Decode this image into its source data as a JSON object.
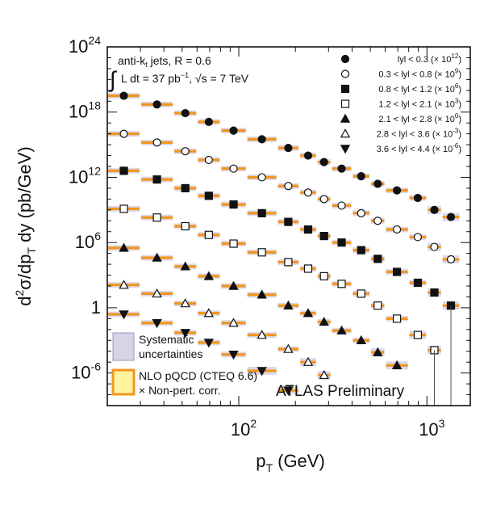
{
  "chart_data": {
    "type": "scatter",
    "log_x": true,
    "log_y": true,
    "xlim": [
      20,
      1700
    ],
    "ylim_log10": [
      -9,
      24
    ],
    "x_ticks": [
      {
        "v": 100,
        "b": "10",
        "e": "2"
      },
      {
        "v": 1000,
        "b": "10",
        "e": "3"
      }
    ],
    "y_ticks": [
      {
        "v": 24,
        "b": "10",
        "e": "24"
      },
      {
        "v": 18,
        "b": "10",
        "e": "18"
      },
      {
        "v": 12,
        "b": "10",
        "e": "12"
      },
      {
        "v": 6,
        "b": "10",
        "e": "6"
      },
      {
        "v": 0,
        "b": "1",
        "e": ""
      },
      {
        "v": -6,
        "b": "10",
        "e": "-6"
      }
    ],
    "xlabel": {
      "p": "p",
      "sub": "T",
      "rest": " (GeV)"
    },
    "ylabel": {
      "d1": "d",
      "s1": "2",
      "mid": "σ/dp",
      "sub": "T",
      "rest": " dy (pb/GeV)"
    },
    "annotation": {
      "line1": "anti-k",
      "line1_sub": "t",
      "line1_rest": " jets,   R = 0.6",
      "integral": "∫",
      "line2_a": "L",
      "line2_b": " dt = 37 pb",
      "line2_sup": "−1",
      "line2_c": ",   √s = 7 TeV"
    },
    "experiment_label": "ATLAS Preliminary",
    "band_legend": {
      "syst_line1": "Systematic",
      "syst_line2": "uncertainties",
      "nlo_line1": "NLO pQCD (CTEQ 6.6)",
      "nlo_line2": "× Non-pert. corr."
    },
    "colors": {
      "nlo_orange": "#f0961e",
      "nlo_fill": "#fff3a0",
      "syst": "#d8d4e8",
      "marker": "#111111"
    },
    "x_bins": [
      [
        20,
        30
      ],
      [
        30,
        45
      ],
      [
        45,
        60
      ],
      [
        60,
        80
      ],
      [
        80,
        110
      ],
      [
        110,
        160
      ],
      [
        160,
        210
      ],
      [
        210,
        260
      ],
      [
        260,
        310
      ],
      [
        310,
        400
      ],
      [
        400,
        500
      ],
      [
        500,
        600
      ],
      [
        600,
        800
      ],
      [
        800,
        1000
      ],
      [
        1000,
        1200
      ],
      [
        1200,
        1500
      ]
    ],
    "series": [
      {
        "name": "|y| < 0.3 (× 10^12)",
        "label_pre": "lyl < 0.3 (× 10",
        "label_sup": "12",
        "label_post": ")",
        "marker": "circle-filled",
        "values": [
          19.5,
          18.7,
          17.9,
          17.1,
          16.3,
          15.5,
          14.7,
          14.0,
          13.4,
          12.8,
          12.1,
          11.4,
          10.8,
          10.1,
          9.0,
          8.35
        ]
      },
      {
        "name": "0.3 < |y| < 0.8 (× 10^9)",
        "label_pre": "0.3 < lyl < 0.8 (× 10",
        "label_sup": "9",
        "label_post": ")",
        "marker": "circle-open",
        "values": [
          16.0,
          15.2,
          14.4,
          13.6,
          12.8,
          12.0,
          11.2,
          10.6,
          10.0,
          9.4,
          8.7,
          8.0,
          7.2,
          6.5,
          5.6,
          4.45
        ]
      },
      {
        "name": "0.8 < |y| < 1.2 (× 10^6)",
        "label_pre": "0.8 < lyl < 1.2 (× 10",
        "label_sup": "6",
        "label_post": ")",
        "marker": "square-filled",
        "values": [
          12.6,
          11.8,
          11.0,
          10.3,
          9.5,
          8.7,
          7.9,
          7.2,
          6.6,
          6.0,
          5.3,
          4.5,
          3.3,
          2.3,
          1.4,
          0.2
        ]
      },
      {
        "name": "1.2 < |y| < 2.1 (× 10^3)",
        "label_pre": "1.2 < lyl < 2.1 (× 10",
        "label_sup": "3",
        "label_post": ")",
        "marker": "square-open",
        "values": [
          9.1,
          8.3,
          7.5,
          6.7,
          5.9,
          5.1,
          4.2,
          3.6,
          2.9,
          2.2,
          1.3,
          0.2,
          -1.0,
          -2.5,
          -3.9
        ]
      },
      {
        "name": "2.1 < |y| < 2.8 (× 10^0)",
        "label_pre": "2.1 < lyl < 2.8 (× 10",
        "label_sup": "0",
        "label_post": ")",
        "marker": "triangle-up-filled",
        "values": [
          5.5,
          4.6,
          3.8,
          2.9,
          2.0,
          1.2,
          0.2,
          -0.5,
          -1.3,
          -2.1,
          -3.0,
          -4.1,
          -5.3
        ]
      },
      {
        "name": "2.8 < |y| < 3.6 (× 10^-3)",
        "label_pre": "2.8 < lyl < 3.6 (× 10",
        "label_sup": "-3",
        "label_post": ")",
        "marker": "triangle-up-open",
        "values": [
          2.1,
          1.3,
          0.4,
          -0.5,
          -1.4,
          -2.5,
          -3.8,
          -5.0,
          -6.2
        ]
      },
      {
        "name": "3.6 < |y| < 4.4 (× 10^-6)",
        "label_pre": "3.6 < lyl < 4.4 (× 10",
        "label_sup": "-6",
        "label_post": ")",
        "marker": "triangle-down-filled",
        "values": [
          -0.6,
          -1.4,
          -2.3,
          -3.2,
          -4.3,
          -5.8,
          -7.6
        ]
      }
    ]
  }
}
